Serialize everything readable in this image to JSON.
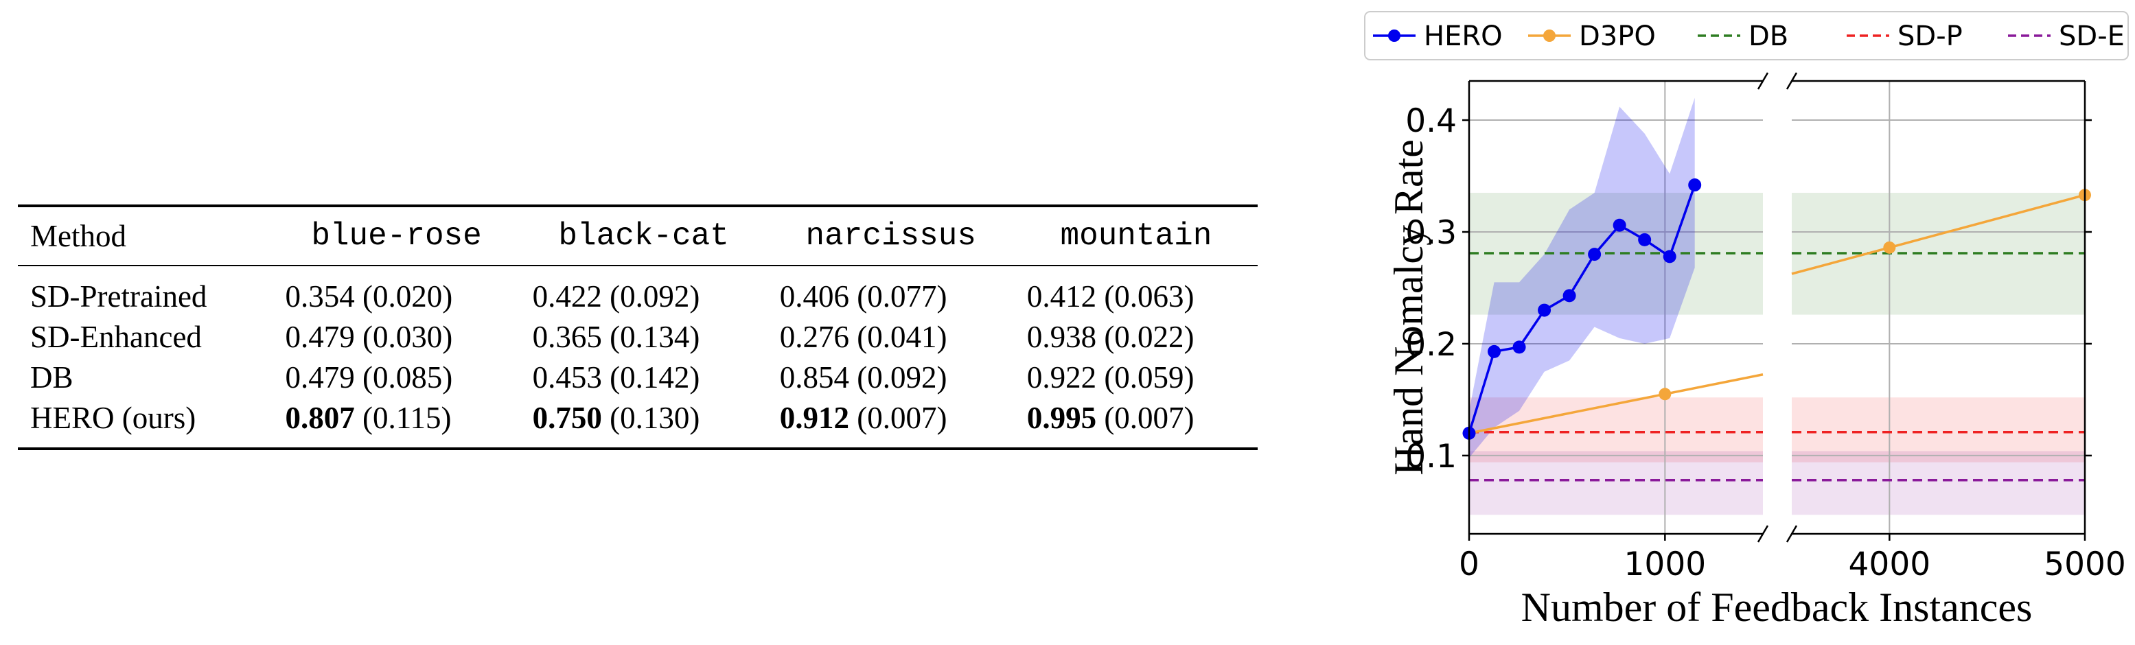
{
  "table": {
    "columns": [
      "Method",
      "blue-rose",
      "black-cat",
      "narcissus",
      "mountain"
    ],
    "rows": [
      {
        "method": "SD-Pretrained",
        "cells": [
          {
            "mean": "0.354",
            "std": "(0.020)",
            "bold": false
          },
          {
            "mean": "0.422",
            "std": "(0.092)",
            "bold": false
          },
          {
            "mean": "0.406",
            "std": "(0.077)",
            "bold": false
          },
          {
            "mean": "0.412",
            "std": "(0.063)",
            "bold": false
          }
        ]
      },
      {
        "method": "SD-Enhanced",
        "cells": [
          {
            "mean": "0.479",
            "std": "(0.030)",
            "bold": false
          },
          {
            "mean": "0.365",
            "std": "(0.134)",
            "bold": false
          },
          {
            "mean": "0.276",
            "std": "(0.041)",
            "bold": false
          },
          {
            "mean": "0.938",
            "std": "(0.022)",
            "bold": false
          }
        ]
      },
      {
        "method": "DB",
        "cells": [
          {
            "mean": "0.479",
            "std": "(0.085)",
            "bold": false
          },
          {
            "mean": "0.453",
            "std": "(0.142)",
            "bold": false
          },
          {
            "mean": "0.854",
            "std": "(0.092)",
            "bold": false
          },
          {
            "mean": "0.922",
            "std": "(0.059)",
            "bold": false
          }
        ]
      },
      {
        "method": "HERO (ours)",
        "cells": [
          {
            "mean": "0.807",
            "std": "(0.115)",
            "bold": true
          },
          {
            "mean": "0.750",
            "std": "(0.130)",
            "bold": true
          },
          {
            "mean": "0.912",
            "std": "(0.007)",
            "bold": true
          },
          {
            "mean": "0.995",
            "std": "(0.007)",
            "bold": true
          }
        ]
      }
    ]
  },
  "chart_data": {
    "type": "line",
    "title": "",
    "xlabel": "Number of Feedback Instances",
    "ylabel": "Hand Nomalcy Rate",
    "broken_x_axis": true,
    "x_segments": [
      {
        "xlim": [
          0,
          1500
        ],
        "ticks": [
          0,
          1000
        ],
        "tick_labels": [
          "0",
          "1000"
        ]
      },
      {
        "xlim": [
          3500,
          5000
        ],
        "ticks": [
          4000,
          5000
        ],
        "tick_labels": [
          "4000",
          "5000"
        ]
      }
    ],
    "ylim": [
      0.03,
      0.435
    ],
    "yticks": [
      0.1,
      0.2,
      0.3,
      0.4
    ],
    "ytick_labels": [
      "0.1",
      "0.2",
      "0.3",
      "0.4"
    ],
    "grid": true,
    "legend_position": "top",
    "series": [
      {
        "name": "HERO",
        "color": "#0000ee",
        "style": "solid",
        "marker": "circle",
        "x": [
          0,
          128,
          256,
          384,
          512,
          640,
          768,
          896,
          1024,
          1152
        ],
        "y": [
          0.12,
          0.193,
          0.197,
          0.23,
          0.243,
          0.28,
          0.306,
          0.293,
          0.278,
          0.342
        ],
        "band_low": [
          0.098,
          0.125,
          0.14,
          0.175,
          0.185,
          0.215,
          0.205,
          0.2,
          0.205,
          0.268
        ],
        "band_high": [
          0.14,
          0.255,
          0.255,
          0.28,
          0.32,
          0.335,
          0.412,
          0.388,
          0.352,
          0.42
        ]
      },
      {
        "name": "D3PO",
        "color": "#f4a63a",
        "style": "solid",
        "marker": "circle",
        "x": [
          0,
          1000,
          4000,
          5000
        ],
        "y": [
          0.12,
          0.155,
          0.286,
          0.333
        ],
        "markers_at": [
          0,
          1000,
          4000,
          5000
        ]
      },
      {
        "name": "DB",
        "color": "#2e7d22",
        "style": "dashed",
        "value": 0.281,
        "band": [
          0.226,
          0.335
        ]
      },
      {
        "name": "SD-P",
        "color": "#ee2222",
        "style": "dashed",
        "value": 0.121,
        "band": [
          0.094,
          0.152
        ]
      },
      {
        "name": "SD-E",
        "color": "#8a1a9a",
        "style": "dashed",
        "value": 0.078,
        "band": [
          0.047,
          0.104
        ]
      }
    ]
  }
}
